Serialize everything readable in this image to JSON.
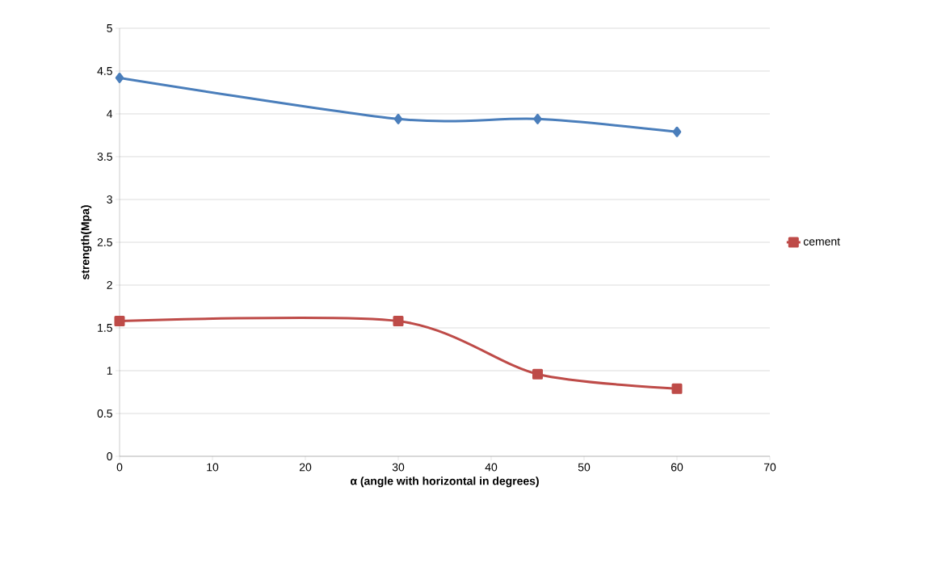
{
  "chart_data": {
    "type": "line",
    "xlabel": "α (angle with horizontal in degrees)",
    "ylabel": "strength(Mpa)",
    "x": [
      0,
      30,
      45,
      60
    ],
    "series": [
      {
        "color": "#4a7ebb",
        "marker": "diamond",
        "values": [
          4.42,
          3.94,
          3.94,
          3.79
        ]
      },
      {
        "name": "cement",
        "color": "#be4b48",
        "marker": "square",
        "values": [
          1.58,
          1.58,
          0.96,
          0.79
        ]
      }
    ],
    "xlim": [
      0,
      70
    ],
    "ylim": [
      0,
      5
    ],
    "xticks": [
      0,
      10,
      20,
      30,
      40,
      50,
      60,
      70
    ],
    "yticks": [
      0,
      0.5,
      1,
      1.5,
      2,
      2.5,
      3,
      3.5,
      4,
      4.5,
      5
    ],
    "grid": "y",
    "legend": "right"
  }
}
